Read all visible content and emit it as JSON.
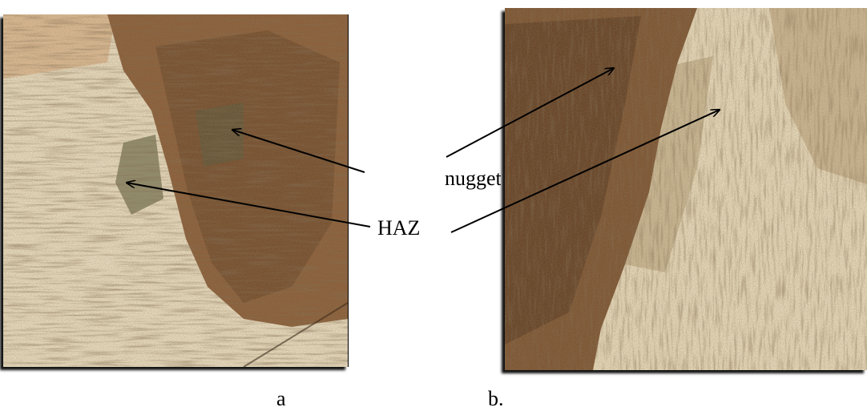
{
  "annotations": {
    "nugget_label": "nugget",
    "haz_label": "HAZ"
  },
  "captions": {
    "panel_a": "a",
    "panel_b": "b."
  },
  "colors": {
    "base_metal": "#e6d9bd",
    "weld_nugget": "#8a5e3a",
    "dark_grain": "#4f3a25",
    "haz_tint": "#6b6a4a"
  }
}
